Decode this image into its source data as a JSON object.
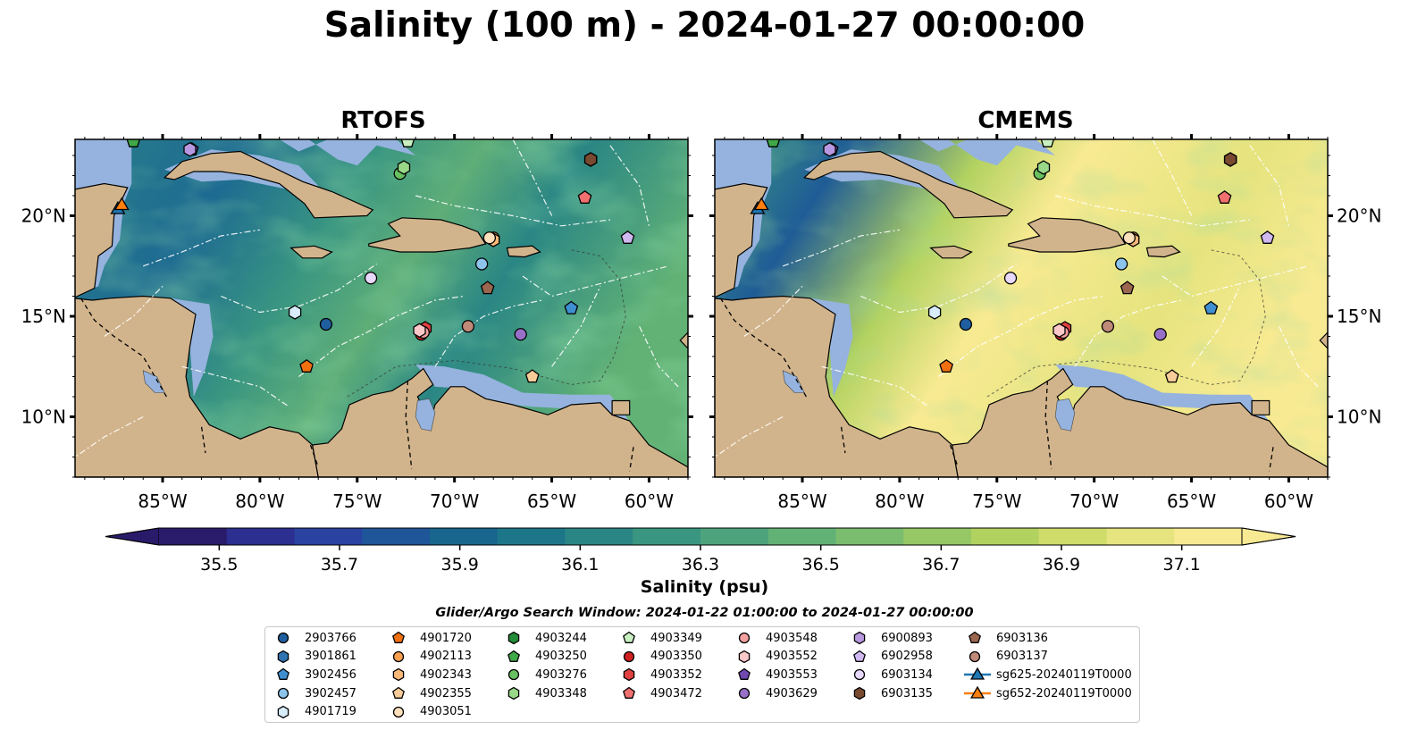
{
  "title": "Salinity (100 m) - 2024-01-27 00:00:00",
  "panels": [
    {
      "title": "RTOFS"
    },
    {
      "title": "CMEMS"
    }
  ],
  "map": {
    "lon_range": [
      -89.5,
      -58.0
    ],
    "lat_range": [
      7.0,
      23.8
    ],
    "lon_ticks": [
      "85°W",
      "80°W",
      "75°W",
      "70°W",
      "65°W",
      "60°W"
    ],
    "lat_ticks": [
      "20°N",
      "15°N",
      "10°N"
    ],
    "colors": {
      "land": "#d2b48c",
      "shelf": "#95b3de",
      "deep_pacific": "#2a1a6a"
    }
  },
  "colorbar": {
    "label": "Salinity (psu)",
    "min": 35.4,
    "max": 37.2,
    "ticks": [
      "35.5",
      "35.7",
      "35.9",
      "36.1",
      "36.3",
      "36.5",
      "36.7",
      "36.9",
      "37.1"
    ],
    "colors": [
      "#2a1a6a",
      "#2c2f8f",
      "#2a42a0",
      "#1f5599",
      "#18668e",
      "#1d7688",
      "#2a8684",
      "#3a9680",
      "#4da47c",
      "#62b276",
      "#7bbd6e",
      "#96c865",
      "#b2d260",
      "#cfdc6a",
      "#e6e47f",
      "#f8ea92"
    ]
  },
  "search_window": "Glider/Argo Search Window: 2024-01-22 01:00:00 to 2024-01-27 00:00:00",
  "legend": [
    {
      "label": "2903766",
      "marker": "circle",
      "color": "#1f5fa0"
    },
    {
      "label": "3901861",
      "marker": "hexagon",
      "color": "#2f74b0"
    },
    {
      "label": "3902456",
      "marker": "pentagon",
      "color": "#3f8fd0"
    },
    {
      "label": "3902457",
      "marker": "circle",
      "color": "#8cc4ec"
    },
    {
      "label": "4901719",
      "marker": "hexagon",
      "color": "#d8ecfa"
    },
    {
      "label": "4901720",
      "marker": "pentagon",
      "color": "#f07010"
    },
    {
      "label": "4902113",
      "marker": "circle",
      "color": "#f8a050"
    },
    {
      "label": "4902343",
      "marker": "hexagon",
      "color": "#f8b878"
    },
    {
      "label": "4902355",
      "marker": "pentagon",
      "color": "#f8cc98"
    },
    {
      "label": "4903051",
      "marker": "circle",
      "color": "#fde0bc"
    },
    {
      "label": "4903244",
      "marker": "hexagon",
      "color": "#248a38"
    },
    {
      "label": "4903250",
      "marker": "pentagon",
      "color": "#40a848"
    },
    {
      "label": "4903276",
      "marker": "circle",
      "color": "#68c060"
    },
    {
      "label": "4903348",
      "marker": "hexagon",
      "color": "#98d888"
    },
    {
      "label": "4903349",
      "marker": "pentagon",
      "color": "#c8f0c0"
    },
    {
      "label": "4903350",
      "marker": "circle",
      "color": "#d02020"
    },
    {
      "label": "4903352",
      "marker": "hexagon",
      "color": "#e04040"
    },
    {
      "label": "4903472",
      "marker": "pentagon",
      "color": "#f07070"
    },
    {
      "label": "4903548",
      "marker": "circle",
      "color": "#f4a0a0"
    },
    {
      "label": "4903552",
      "marker": "hexagon",
      "color": "#fcc8c8"
    },
    {
      "label": "4903553",
      "marker": "pentagon",
      "color": "#7048b0"
    },
    {
      "label": "4903629",
      "marker": "circle",
      "color": "#9870c8"
    },
    {
      "label": "6900893",
      "marker": "hexagon",
      "color": "#b898e0"
    },
    {
      "label": "6902958",
      "marker": "pentagon",
      "color": "#d0b8f0"
    },
    {
      "label": "6903134",
      "marker": "circle",
      "color": "#e8d8fc"
    },
    {
      "label": "6903135",
      "marker": "hexagon",
      "color": "#7a4a30"
    },
    {
      "label": "6903136",
      "marker": "pentagon",
      "color": "#9a6650"
    },
    {
      "label": "6903137",
      "marker": "circle",
      "color": "#c08a78"
    },
    {
      "label": "sg625-20240119T0000",
      "marker": "triangle-line",
      "color": "#1f77b4"
    },
    {
      "label": "sg652-20240119T0000",
      "marker": "triangle-line",
      "color": "#ff7f0e"
    }
  ],
  "floats": [
    {
      "id": "2903766",
      "lon": -76.6,
      "lat": 14.6
    },
    {
      "id": "3901861",
      "lon": -63.0,
      "lat": 22.8
    },
    {
      "id": "3902456",
      "lon": -64.0,
      "lat": 15.4
    },
    {
      "id": "3902457",
      "lon": -68.6,
      "lat": 17.6
    },
    {
      "id": "4901719",
      "lon": -78.2,
      "lat": 15.2
    },
    {
      "id": "4901720",
      "lon": -77.6,
      "lat": 12.5
    },
    {
      "id": "4902113",
      "lon": -68.0,
      "lat": 18.9
    },
    {
      "id": "4902343",
      "lon": -68.0,
      "lat": 18.8
    },
    {
      "id": "4902355",
      "lon": -66.0,
      "lat": 12.0
    },
    {
      "id": "4903051",
      "lon": -68.2,
      "lat": 18.9
    },
    {
      "id": "4903244",
      "lon": -63.0,
      "lat": 22.8
    },
    {
      "id": "4903250",
      "lon": -86.5,
      "lat": 23.7
    },
    {
      "id": "4903276",
      "lon": -72.8,
      "lat": 22.1
    },
    {
      "id": "4903348",
      "lon": -72.6,
      "lat": 22.4
    },
    {
      "id": "4903349",
      "lon": -72.4,
      "lat": 23.7
    },
    {
      "id": "4903350",
      "lon": -71.7,
      "lat": 14.1
    },
    {
      "id": "4903352",
      "lon": -71.5,
      "lat": 14.4
    },
    {
      "id": "4903472",
      "lon": -63.3,
      "lat": 20.9
    },
    {
      "id": "4903548",
      "lon": -71.6,
      "lat": 14.2
    },
    {
      "id": "4903552",
      "lon": -71.8,
      "lat": 14.3
    },
    {
      "id": "4903553",
      "lon": -83.5,
      "lat": 23.3
    },
    {
      "id": "4903629",
      "lon": -66.6,
      "lat": 14.1
    },
    {
      "id": "6900893",
      "lon": -83.6,
      "lat": 23.3
    },
    {
      "id": "6902958",
      "lon": -61.1,
      "lat": 18.9
    },
    {
      "id": "6903134",
      "lon": -74.3,
      "lat": 16.9
    },
    {
      "id": "6903135",
      "lon": -63.0,
      "lat": 22.8
    },
    {
      "id": "6903136",
      "lon": -68.3,
      "lat": 16.4
    },
    {
      "id": "6903137",
      "lon": -69.3,
      "lat": 14.5
    }
  ],
  "gliders": [
    {
      "id": "sg625-20240119T0000",
      "lon": -87.3,
      "lat": 20.3
    },
    {
      "id": "sg652-20240119T0000",
      "lon": -87.1,
      "lat": 20.5
    }
  ]
}
